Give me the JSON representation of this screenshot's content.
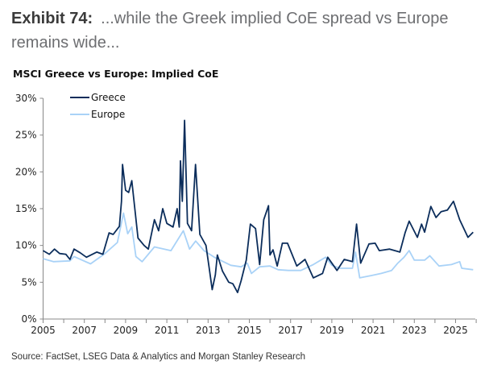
{
  "title": {
    "exhibit": "Exhibit 74:",
    "text": "...while the Greek implied CoE spread vs Europe remains wide..."
  },
  "subtitle": "MSCI Greece vs Europe: Implied CoE",
  "source": "Source: FactSet, LSEG Data & Analytics and Morgan Stanley Research",
  "chart_data": {
    "type": "line",
    "title": "MSCI Greece vs Europe: Implied CoE",
    "xlim": [
      2005,
      2026
    ],
    "ylim": [
      0,
      30
    ],
    "x_ticks": [
      "2005",
      "2007",
      "2009",
      "2011",
      "2013",
      "2015",
      "2017",
      "2019",
      "2021",
      "2023",
      "2025"
    ],
    "y_ticks": [
      "0%",
      "5%",
      "10%",
      "15%",
      "20%",
      "25%",
      "30%"
    ],
    "legend_position": "top-left",
    "grid": false,
    "series": [
      {
        "name": "Greece",
        "color": "#0b2d5b",
        "x": [
          2005.0,
          2005.3,
          2005.55,
          2005.8,
          2006.1,
          2006.3,
          2006.5,
          2006.8,
          2007.1,
          2007.6,
          2007.9,
          2008.2,
          2008.4,
          2008.7,
          2008.8,
          2008.85,
          2009.0,
          2009.15,
          2009.3,
          2009.6,
          2009.9,
          2010.1,
          2010.4,
          2010.6,
          2010.8,
          2011.0,
          2011.3,
          2011.5,
          2011.6,
          2011.66,
          2011.75,
          2011.86,
          2012.0,
          2012.2,
          2012.39,
          2012.6,
          2012.9,
          2013.05,
          2013.2,
          2013.35,
          2013.45,
          2013.7,
          2014.0,
          2014.2,
          2014.43,
          2014.6,
          2014.85,
          2015.05,
          2015.3,
          2015.5,
          2015.7,
          2015.93,
          2016.0,
          2016.15,
          2016.35,
          2016.6,
          2016.85,
          2017.3,
          2017.7,
          2018.1,
          2018.55,
          2018.8,
          2019.25,
          2019.6,
          2020.0,
          2020.2,
          2020.4,
          2020.8,
          2021.1,
          2021.3,
          2021.8,
          2022.3,
          2022.55,
          2022.75,
          2023.15,
          2023.35,
          2023.5,
          2023.8,
          2024.05,
          2024.3,
          2024.6,
          2024.9,
          2025.2,
          2025.6,
          2025.85
        ],
        "values": [
          9.3,
          8.8,
          9.5,
          8.9,
          8.8,
          8.1,
          9.5,
          9.0,
          8.4,
          9.1,
          8.8,
          11.7,
          11.5,
          12.6,
          16.0,
          21.0,
          17.5,
          17.2,
          18.8,
          11.0,
          10.0,
          9.5,
          13.5,
          12.0,
          15.0,
          13.0,
          12.5,
          15.0,
          12.5,
          21.5,
          16.0,
          27.0,
          13.0,
          12.0,
          21.0,
          11.5,
          10.0,
          7.0,
          4.0,
          6.0,
          8.7,
          6.5,
          5.0,
          4.8,
          3.6,
          5.2,
          8.0,
          12.9,
          12.3,
          7.4,
          13.5,
          15.4,
          8.7,
          9.4,
          7.2,
          10.3,
          10.3,
          7.2,
          8.1,
          5.6,
          6.2,
          8.4,
          6.6,
          8.1,
          7.8,
          12.9,
          7.6,
          10.2,
          10.3,
          9.3,
          9.5,
          9.1,
          11.7,
          13.3,
          11.1,
          12.9,
          11.8,
          15.3,
          13.8,
          14.6,
          14.8,
          16.0,
          13.5,
          11.1,
          11.8
        ]
      },
      {
        "name": "Europe",
        "color": "#a9d2f7",
        "x": [
          2005.0,
          2005.5,
          2006.3,
          2006.5,
          2007.3,
          2008.0,
          2008.6,
          2008.9,
          2009.1,
          2009.3,
          2009.5,
          2009.8,
          2010.4,
          2011.2,
          2011.8,
          2012.1,
          2012.4,
          2012.8,
          2013.3,
          2014.1,
          2014.6,
          2014.9,
          2015.1,
          2015.5,
          2016.0,
          2016.4,
          2016.9,
          2017.5,
          2018.1,
          2018.7,
          2019.0,
          2019.4,
          2020.0,
          2020.15,
          2020.35,
          2020.9,
          2021.4,
          2021.9,
          2022.2,
          2022.5,
          2022.75,
          2023.0,
          2023.5,
          2023.75,
          2024.2,
          2024.8,
          2025.2,
          2025.3,
          2025.85
        ],
        "values": [
          8.2,
          7.8,
          7.9,
          8.5,
          7.5,
          8.9,
          10.4,
          14.4,
          11.6,
          12.5,
          8.5,
          7.8,
          9.8,
          9.3,
          12.0,
          9.5,
          10.6,
          9.3,
          8.4,
          7.3,
          7.1,
          7.6,
          6.2,
          7.1,
          7.2,
          6.7,
          6.6,
          6.6,
          7.4,
          8.4,
          7.3,
          6.9,
          6.9,
          9.1,
          5.6,
          5.9,
          6.2,
          6.6,
          7.6,
          8.4,
          9.3,
          8.0,
          8.0,
          8.6,
          7.2,
          7.4,
          7.8,
          6.9,
          6.7
        ]
      }
    ]
  }
}
